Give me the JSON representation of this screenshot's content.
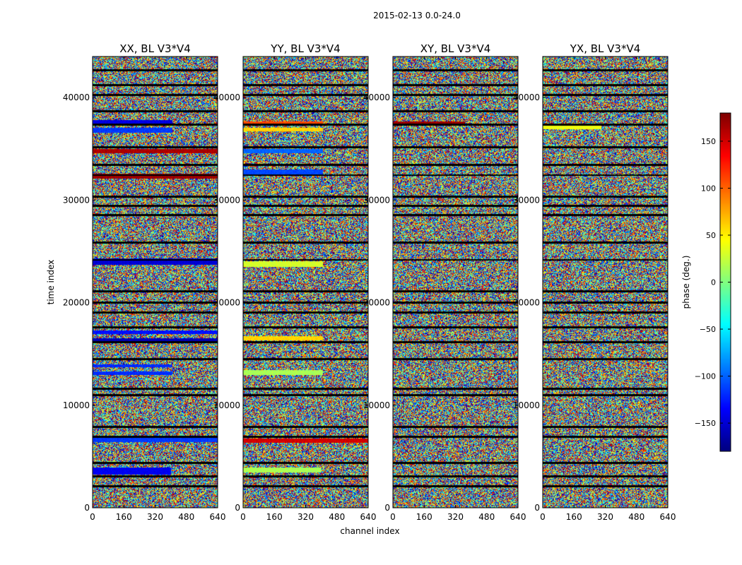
{
  "figure": {
    "suptitle": "2015-02-13 0.0-24.0"
  },
  "colorbar": {
    "label": "phase (deg.)",
    "colormap": "jet",
    "range": [
      -180,
      180
    ],
    "ticks": [
      150,
      100,
      50,
      0,
      -50,
      -100,
      -150
    ],
    "tick_labels": [
      "150",
      "100",
      "50",
      "0",
      "−50",
      "−100",
      "−150"
    ]
  },
  "chart_data": [
    {
      "type": "heatmap",
      "title": "XX, BL V3*V4",
      "xlabel": "",
      "ylabel": "time index",
      "xlim": [
        0,
        640
      ],
      "ylim": [
        0,
        44000
      ],
      "xticks": [
        "0",
        "160",
        "320",
        "480",
        "640"
      ],
      "yticks": [
        "0",
        "10000",
        "20000",
        "30000",
        "40000"
      ],
      "value_range_deg": [
        -180,
        180
      ],
      "coherent_bands": [
        {
          "t": [
            3200,
            3900
          ],
          "ch": [
            0,
            400
          ],
          "phase": -140
        },
        {
          "t": [
            6400,
            6800
          ],
          "ch": [
            0,
            640
          ],
          "phase": -115
        },
        {
          "t": [
            12900,
            13300
          ],
          "ch": [
            0,
            410
          ],
          "phase": -120
        },
        {
          "t": [
            13700,
            14000
          ],
          "ch": [
            0,
            410
          ],
          "phase": -120
        },
        {
          "t": [
            16200,
            16500
          ],
          "ch": [
            0,
            640
          ],
          "phase": -160
        },
        {
          "t": [
            16900,
            17300
          ],
          "ch": [
            0,
            640
          ],
          "phase": -130
        },
        {
          "t": [
            23700,
            24300
          ],
          "ch": [
            0,
            640
          ],
          "phase": -150
        },
        {
          "t": [
            32100,
            32600
          ],
          "ch": [
            0,
            640
          ],
          "phase": 170
        },
        {
          "t": [
            34600,
            35000
          ],
          "ch": [
            0,
            640
          ],
          "phase": 165
        },
        {
          "t": [
            36600,
            37100
          ],
          "ch": [
            0,
            410
          ],
          "phase": -115
        },
        {
          "t": [
            37400,
            37800
          ],
          "ch": [
            0,
            410
          ],
          "phase": -145
        }
      ]
    },
    {
      "type": "heatmap",
      "title": "YY, BL V3*V4",
      "xlabel": "channel index",
      "ylabel": "",
      "xlim": [
        0,
        640
      ],
      "ylim": [
        0,
        44000
      ],
      "xticks": [
        "0",
        "160",
        "320",
        "480",
        "640"
      ],
      "yticks": [
        "0",
        "10000",
        "20000",
        "30000",
        "40000"
      ],
      "value_range_deg": [
        -180,
        180
      ],
      "coherent_bands": [
        {
          "t": [
            3400,
            3900
          ],
          "ch": [
            0,
            400
          ],
          "phase": 15
        },
        {
          "t": [
            6300,
            6700
          ],
          "ch": [
            0,
            640
          ],
          "phase": 150
        },
        {
          "t": [
            12900,
            13400
          ],
          "ch": [
            0,
            410
          ],
          "phase": 15
        },
        {
          "t": [
            16300,
            16700
          ],
          "ch": [
            0,
            410
          ],
          "phase": 60
        },
        {
          "t": [
            23500,
            24000
          ],
          "ch": [
            0,
            410
          ],
          "phase": 30
        },
        {
          "t": [
            32500,
            33000
          ],
          "ch": [
            0,
            410
          ],
          "phase": -110
        },
        {
          "t": [
            34600,
            35000
          ],
          "ch": [
            0,
            410
          ],
          "phase": -100
        },
        {
          "t": [
            36700,
            37100
          ],
          "ch": [
            0,
            410
          ],
          "phase": 60
        },
        {
          "t": [
            37300,
            37700
          ],
          "ch": [
            0,
            410
          ],
          "phase": 110
        }
      ]
    },
    {
      "type": "heatmap",
      "title": "XY, BL V3*V4",
      "xlabel": "",
      "ylabel": "",
      "xlim": [
        0,
        640
      ],
      "ylim": [
        0,
        44000
      ],
      "xticks": [
        "0",
        "160",
        "320",
        "480",
        "640"
      ],
      "yticks": [
        "0",
        "10000",
        "20000",
        "30000",
        "40000"
      ],
      "value_range_deg": [
        -180,
        180
      ],
      "coherent_bands": [
        {
          "t": [
            37300,
            37700
          ],
          "ch": [
            0,
            370
          ],
          "phase": 170
        }
      ]
    },
    {
      "type": "heatmap",
      "title": "YX, BL V3*V4",
      "xlabel": "",
      "ylabel": "",
      "xlim": [
        0,
        640
      ],
      "ylim": [
        0,
        44000
      ],
      "xticks": [
        "0",
        "160",
        "320",
        "480",
        "640"
      ],
      "yticks": [
        "0",
        "10000",
        "20000",
        "30000",
        "40000"
      ],
      "value_range_deg": [
        -180,
        180
      ],
      "coherent_bands": [
        {
          "t": [
            36900,
            37500
          ],
          "ch": [
            0,
            300
          ],
          "phase": 40
        }
      ]
    }
  ]
}
